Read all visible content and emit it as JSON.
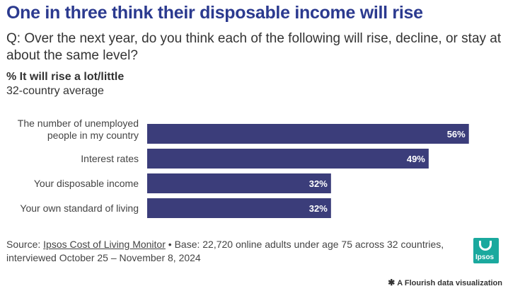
{
  "header": {
    "title": "One in three think their disposable income will rise",
    "subtitle": "Q: Over the next year, do you think each of the following will rise, decline, or stay at about the same level?",
    "measure": "% It will rise a lot/little",
    "region": "32-country average"
  },
  "chart_data": {
    "type": "bar",
    "orientation": "horizontal",
    "categories": [
      "The number of unemployed people in my country",
      "Interest rates",
      "Your disposable income",
      "Your own standard of living"
    ],
    "values": [
      56,
      49,
      32,
      32
    ],
    "value_labels": [
      "56%",
      "49%",
      "32%",
      "32%"
    ],
    "xlim": [
      0,
      100
    ],
    "grid": false,
    "bar_color": "#3b3d7a"
  },
  "footer": {
    "source_prefix": "Source: ",
    "source_link": "Ipsos Cost of Living Monitor",
    "source_rest": " • Base: 22,720 online adults under age 75 across 32 countries, interviewed October 25 – November 8, 2024",
    "logo_text": "Ipsos",
    "logo_color": "#1aa99e",
    "credit": "A Flourish data visualization",
    "credit_icon": "asterisk-icon"
  },
  "colors": {
    "title": "#2b3a8f",
    "bar": "#3b3d7a"
  }
}
